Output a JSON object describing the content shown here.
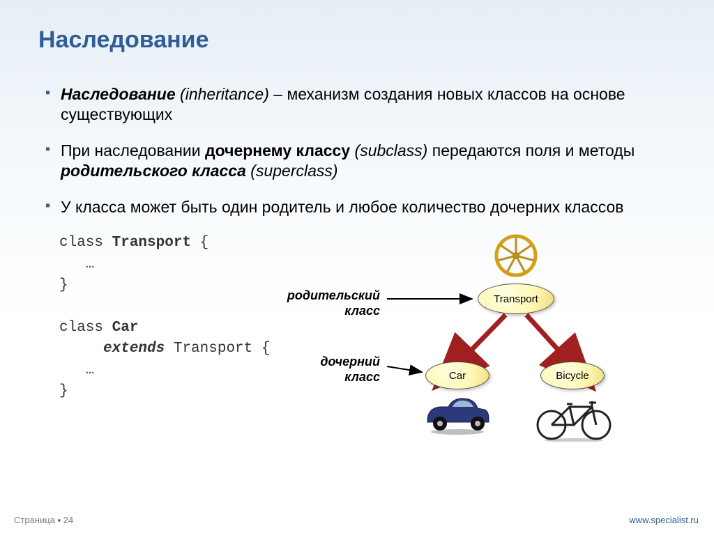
{
  "title": "Наследование",
  "title_color": "#2f5e96",
  "bullet_marker_color": "#2f5e96",
  "bullets": [
    {
      "term": "Наследование",
      "term_paren": "(inheritance)",
      "rest": " – механизм создания новых классов на основе существующих"
    },
    {
      "prefix": "При наследовании ",
      "term1": "дочернему классу",
      "paren1": " (subclass)",
      "mid": " передаются поля и методы ",
      "term2": "родительского класса",
      "paren2": " (superclass)"
    },
    {
      "text": "У класса может быть один родитель и любое количество дочерних классов"
    }
  ],
  "code": {
    "l1a": "class ",
    "l1b": "Transport",
    "l1c": " {",
    "l2": "   …",
    "l3": "}",
    "l5a": "class ",
    "l5b": "Car",
    "l6a": "     ",
    "l6b": "extends",
    "l6c": " Transport {",
    "l7": "   …",
    "l8": "}"
  },
  "diagram": {
    "parent_label_l1": "родительский",
    "parent_label_l2": "класс",
    "child_label_l1": "дочерний",
    "child_label_l2": "класс",
    "node_transport": "Transport",
    "node_car": "Car",
    "node_bicycle": "Bicycle",
    "node_fill_light": "#ffffe0",
    "node_fill_dark": "#ecdc80",
    "arrow_color": "#a02020",
    "black_arrow_color": "#000000",
    "wheel_color": "#d4a017",
    "car_body_color": "#2a3a7a",
    "bike_color": "#222222"
  },
  "footer": {
    "page_label": "Страница ",
    "page_num": "24",
    "url": "www.specialist.ru",
    "url_color": "#2f5e96"
  }
}
